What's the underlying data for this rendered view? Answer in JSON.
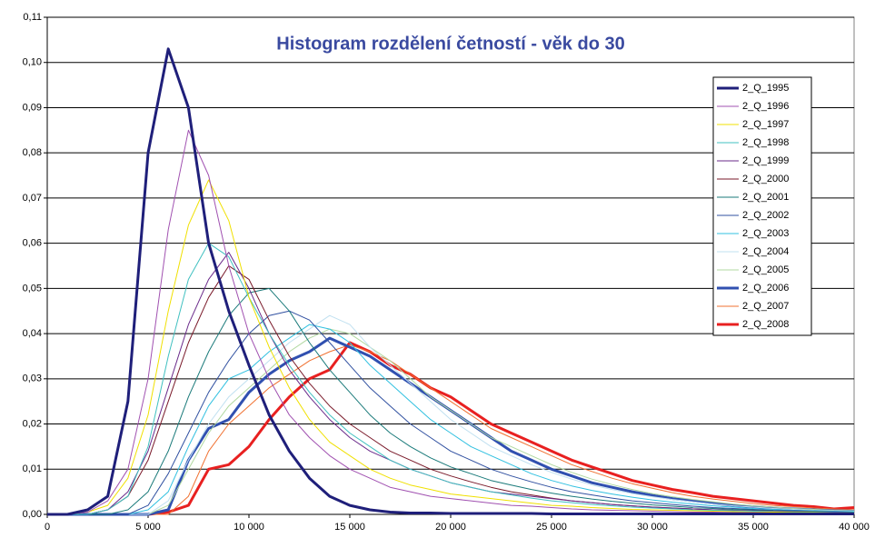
{
  "chart_data": {
    "type": "line",
    "title": "Histogram rozdělení četností - věk do 30",
    "x": [
      0,
      1000,
      2000,
      3000,
      4000,
      5000,
      6000,
      7000,
      8000,
      9000,
      10000,
      11000,
      12000,
      13000,
      14000,
      15000,
      16000,
      17000,
      18000,
      19000,
      20000,
      21000,
      22000,
      23000,
      24000,
      25000,
      26000,
      27000,
      28000,
      29000,
      30000,
      31000,
      32000,
      33000,
      34000,
      35000,
      36000,
      37000,
      38000,
      39000,
      40000
    ],
    "xlim": [
      0,
      40000
    ],
    "xticks": [
      0,
      {
        "value": 5000,
        "label": "5 000"
      },
      {
        "value": 10000,
        "label": "10 000"
      },
      {
        "value": 15000,
        "label": "15 000"
      },
      {
        "value": 20000,
        "label": "20 000"
      },
      {
        "value": 25000,
        "label": "25 000"
      },
      {
        "value": 30000,
        "label": "30 000"
      },
      {
        "value": 35000,
        "label": "35 000"
      },
      {
        "value": 40000,
        "label": "40 000"
      }
    ],
    "ylim": [
      0,
      0.11
    ],
    "yticks": [
      {
        "value": 0,
        "label": "0,00"
      },
      {
        "value": 0.01,
        "label": "0,01"
      },
      {
        "value": 0.02,
        "label": "0,02"
      },
      {
        "value": 0.03,
        "label": "0,03"
      },
      {
        "value": 0.04,
        "label": "0,04"
      },
      {
        "value": 0.05,
        "label": "0,05"
      },
      {
        "value": 0.06,
        "label": "0,06"
      },
      {
        "value": 0.07,
        "label": "0,07"
      },
      {
        "value": 0.08,
        "label": "0,08"
      },
      {
        "value": 0.09,
        "label": "0,09"
      },
      {
        "value": 0.1,
        "label": "0,10"
      },
      {
        "value": 0.11,
        "label": "0,11"
      }
    ],
    "grid": true,
    "legend": "upper right",
    "series": [
      {
        "name": "2_Q_1995",
        "color": "#1f1f7a",
        "width": 3,
        "values": [
          0,
          0,
          0.001,
          0.004,
          0.025,
          0.08,
          0.103,
          0.09,
          0.06,
          0.045,
          0.033,
          0.022,
          0.014,
          0.008,
          0.004,
          0.002,
          0.001,
          0.0005,
          0.0003,
          0.0003,
          0.0002,
          0.0002,
          0.0002,
          0.0002,
          0.0002,
          0.0001,
          0.0001,
          0.0001,
          0.0001,
          0.0001,
          0.0001,
          0.0001,
          0.0001,
          0.0001,
          0.0001,
          0.0001,
          0.0001,
          0.0001,
          0.0001,
          0.0001,
          0.0001
        ]
      },
      {
        "name": "2_Q_1996",
        "color": "#a050b0",
        "width": 1,
        "values": [
          0,
          0,
          0.0005,
          0.003,
          0.01,
          0.03,
          0.063,
          0.085,
          0.075,
          0.055,
          0.04,
          0.03,
          0.022,
          0.017,
          0.013,
          0.01,
          0.008,
          0.006,
          0.005,
          0.004,
          0.0035,
          0.003,
          0.0025,
          0.002,
          0.0018,
          0.0015,
          0.0012,
          0.001,
          0.0009,
          0.0008,
          0.0007,
          0.0006,
          0.0005,
          0.0005,
          0.0004,
          0.0004,
          0.0003,
          0.0003,
          0.0002,
          0.0002,
          0.0002
        ]
      },
      {
        "name": "2_Q_1997",
        "color": "#f0e000",
        "width": 1,
        "values": [
          0,
          0,
          0.0005,
          0.002,
          0.008,
          0.022,
          0.045,
          0.064,
          0.074,
          0.065,
          0.048,
          0.037,
          0.028,
          0.021,
          0.016,
          0.013,
          0.01,
          0.008,
          0.0065,
          0.0055,
          0.0045,
          0.004,
          0.0035,
          0.003,
          0.0025,
          0.002,
          0.0018,
          0.0015,
          0.0013,
          0.0011,
          0.001,
          0.0009,
          0.0008,
          0.0007,
          0.0006,
          0.0005,
          0.0005,
          0.0004,
          0.0004,
          0.0003,
          0.0003
        ]
      },
      {
        "name": "2_Q_1998",
        "color": "#40c0c0",
        "width": 1,
        "values": [
          0,
          0,
          0,
          0.001,
          0.004,
          0.015,
          0.035,
          0.052,
          0.06,
          0.057,
          0.048,
          0.04,
          0.033,
          0.027,
          0.022,
          0.018,
          0.015,
          0.012,
          0.01,
          0.0085,
          0.007,
          0.006,
          0.005,
          0.0043,
          0.0036,
          0.003,
          0.0026,
          0.0022,
          0.0019,
          0.0016,
          0.0014,
          0.0012,
          0.001,
          0.0009,
          0.0008,
          0.0007,
          0.0006,
          0.0005,
          0.0005,
          0.0004,
          0.0004
        ]
      },
      {
        "name": "2_Q_1999",
        "color": "#6a2a8a",
        "width": 1,
        "values": [
          0,
          0,
          0,
          0.001,
          0.005,
          0.014,
          0.028,
          0.042,
          0.052,
          0.058,
          0.05,
          0.04,
          0.032,
          0.026,
          0.021,
          0.017,
          0.014,
          0.012,
          0.01,
          0.0085,
          0.007,
          0.006,
          0.005,
          0.0045,
          0.004,
          0.0035,
          0.003,
          0.0026,
          0.0022,
          0.0019,
          0.0016,
          0.0014,
          0.0012,
          0.001,
          0.0009,
          0.0008,
          0.0007,
          0.0006,
          0.0005,
          0.0005,
          0.0004
        ]
      },
      {
        "name": "2_Q_2000",
        "color": "#7a1a2a",
        "width": 1,
        "values": [
          0,
          0,
          0,
          0.001,
          0.004,
          0.012,
          0.025,
          0.038,
          0.048,
          0.055,
          0.052,
          0.043,
          0.035,
          0.029,
          0.024,
          0.02,
          0.017,
          0.014,
          0.012,
          0.01,
          0.0085,
          0.0072,
          0.006,
          0.005,
          0.0043,
          0.0036,
          0.003,
          0.0026,
          0.0022,
          0.0019,
          0.0016,
          0.0014,
          0.0012,
          0.001,
          0.0009,
          0.0008,
          0.0007,
          0.0006,
          0.0005,
          0.0005,
          0.0004
        ]
      },
      {
        "name": "2_Q_2001",
        "color": "#1a7a7a",
        "width": 1,
        "values": [
          0,
          0,
          0,
          0,
          0.001,
          0.005,
          0.014,
          0.026,
          0.036,
          0.044,
          0.049,
          0.05,
          0.045,
          0.038,
          0.032,
          0.027,
          0.022,
          0.018,
          0.015,
          0.0125,
          0.0105,
          0.009,
          0.0075,
          0.0065,
          0.0055,
          0.0047,
          0.004,
          0.0034,
          0.0029,
          0.0025,
          0.0021,
          0.0018,
          0.0015,
          0.0013,
          0.0011,
          0.001,
          0.0008,
          0.0007,
          0.0006,
          0.0005,
          0.0005
        ]
      },
      {
        "name": "2_Q_2002",
        "color": "#3050a0",
        "width": 1,
        "values": [
          0,
          0,
          0,
          0,
          0,
          0.002,
          0.009,
          0.018,
          0.027,
          0.034,
          0.04,
          0.044,
          0.045,
          0.043,
          0.038,
          0.033,
          0.028,
          0.024,
          0.02,
          0.017,
          0.014,
          0.012,
          0.01,
          0.0085,
          0.0072,
          0.006,
          0.005,
          0.0043,
          0.0036,
          0.003,
          0.0026,
          0.0022,
          0.0018,
          0.0015,
          0.0013,
          0.0011,
          0.0009,
          0.0008,
          0.0007,
          0.0006,
          0.0005
        ]
      },
      {
        "name": "2_Q_2003",
        "color": "#30c0e0",
        "width": 1,
        "values": [
          0,
          0,
          0,
          0,
          0,
          0.001,
          0.005,
          0.015,
          0.024,
          0.03,
          0.032,
          0.036,
          0.039,
          0.042,
          0.041,
          0.038,
          0.033,
          0.029,
          0.025,
          0.021,
          0.018,
          0.015,
          0.013,
          0.011,
          0.009,
          0.0075,
          0.0063,
          0.0053,
          0.0045,
          0.0038,
          0.0032,
          0.0027,
          0.0023,
          0.0019,
          0.0016,
          0.0013,
          0.0011,
          0.0009,
          0.0008,
          0.0007,
          0.0006
        ]
      },
      {
        "name": "2_Q_2004",
        "color": "#c0e0f0",
        "width": 1,
        "values": [
          0,
          0,
          0,
          0,
          0,
          0,
          0.003,
          0.012,
          0.02,
          0.026,
          0.03,
          0.034,
          0.038,
          0.041,
          0.044,
          0.042,
          0.037,
          0.033,
          0.029,
          0.025,
          0.021,
          0.018,
          0.015,
          0.013,
          0.011,
          0.0093,
          0.0078,
          0.0065,
          0.0055,
          0.0046,
          0.0039,
          0.0033,
          0.0028,
          0.0023,
          0.0019,
          0.0016,
          0.0013,
          0.0011,
          0.0009,
          0.0008,
          0.0007
        ]
      },
      {
        "name": "2_Q_2005",
        "color": "#b0d8a0",
        "width": 1,
        "values": [
          0,
          0,
          0,
          0,
          0,
          0,
          0.002,
          0.01,
          0.018,
          0.024,
          0.028,
          0.032,
          0.036,
          0.039,
          0.041,
          0.04,
          0.037,
          0.034,
          0.03,
          0.026,
          0.023,
          0.02,
          0.017,
          0.015,
          0.013,
          0.011,
          0.0093,
          0.0078,
          0.0066,
          0.0055,
          0.0046,
          0.0039,
          0.0033,
          0.0028,
          0.0023,
          0.0019,
          0.0016,
          0.0013,
          0.0011,
          0.0009,
          0.0008
        ]
      },
      {
        "name": "2_Q_2006",
        "color": "#3050b0",
        "width": 3,
        "values": [
          0,
          0,
          0,
          0,
          0,
          0,
          0.001,
          0.012,
          0.019,
          0.021,
          0.027,
          0.031,
          0.034,
          0.036,
          0.039,
          0.037,
          0.035,
          0.032,
          0.029,
          0.026,
          0.023,
          0.02,
          0.017,
          0.014,
          0.012,
          0.01,
          0.0085,
          0.007,
          0.006,
          0.005,
          0.0042,
          0.0035,
          0.003,
          0.0025,
          0.002,
          0.0017,
          0.0014,
          0.0012,
          0.001,
          0.0008,
          0.0007
        ]
      },
      {
        "name": "2_Q_2007",
        "color": "#f07030",
        "width": 1,
        "values": [
          0,
          0,
          0,
          0,
          0,
          0,
          0,
          0.004,
          0.014,
          0.02,
          0.024,
          0.028,
          0.031,
          0.034,
          0.036,
          0.0375,
          0.036,
          0.034,
          0.031,
          0.028,
          0.025,
          0.022,
          0.019,
          0.017,
          0.015,
          0.013,
          0.011,
          0.0095,
          0.008,
          0.0068,
          0.0058,
          0.0048,
          0.004,
          0.0034,
          0.0029,
          0.0024,
          0.002,
          0.0017,
          0.0014,
          0.0012,
          0.001
        ]
      },
      {
        "name": "2_Q_2008",
        "color": "#e82020",
        "width": 3,
        "values": [
          0,
          0,
          0,
          0,
          0,
          0,
          0.0005,
          0.002,
          0.01,
          0.011,
          0.015,
          0.021,
          0.026,
          0.03,
          0.032,
          0.038,
          0.036,
          0.033,
          0.031,
          0.028,
          0.026,
          0.023,
          0.02,
          0.018,
          0.016,
          0.014,
          0.012,
          0.0105,
          0.009,
          0.0075,
          0.0065,
          0.0055,
          0.0048,
          0.004,
          0.0035,
          0.003,
          0.0025,
          0.002,
          0.0017,
          0.0012,
          0.0015
        ]
      }
    ]
  }
}
